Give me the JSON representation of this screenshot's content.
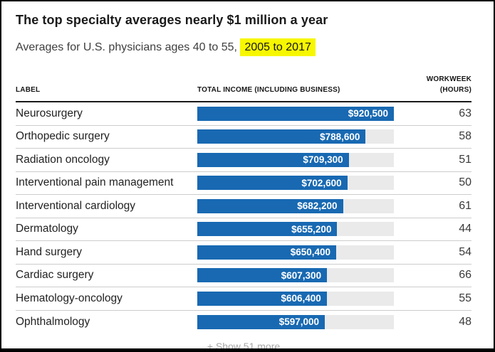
{
  "header": {
    "title": "The top specialty averages nearly $1 million a year",
    "subtitle_prefix": "Averages for U.S. physicians ages 40 to 55, ",
    "subtitle_highlight": "2005 to 2017"
  },
  "table": {
    "columns": {
      "label": "LABEL",
      "income": "TOTAL INCOME (INCLUDING BUSINESS)",
      "workweek_line1": "WORKWEEK",
      "workweek_line2": "(HOURS)"
    },
    "scale_max": 920500,
    "rows": [
      {
        "label": "Neurosurgery",
        "income_value": 920500,
        "income_label": "$920,500",
        "hours": "63"
      },
      {
        "label": "Orthopedic surgery",
        "income_value": 788600,
        "income_label": "$788,600",
        "hours": "58"
      },
      {
        "label": "Radiation oncology",
        "income_value": 709300,
        "income_label": "$709,300",
        "hours": "51"
      },
      {
        "label": "Interventional pain management",
        "income_value": 702600,
        "income_label": "$702,600",
        "hours": "50"
      },
      {
        "label": "Interventional cardiology",
        "income_value": 682200,
        "income_label": "$682,200",
        "hours": "61"
      },
      {
        "label": "Dermatology",
        "income_value": 655200,
        "income_label": "$655,200",
        "hours": "44"
      },
      {
        "label": "Hand surgery",
        "income_value": 650400,
        "income_label": "$650,400",
        "hours": "54"
      },
      {
        "label": "Cardiac surgery",
        "income_value": 607300,
        "income_label": "$607,300",
        "hours": "66"
      },
      {
        "label": "Hematology-oncology",
        "income_value": 606400,
        "income_label": "$606,400",
        "hours": "55"
      },
      {
        "label": "Ophthalmology",
        "income_value": 597000,
        "income_label": "$597,000",
        "hours": "48"
      }
    ]
  },
  "footer": {
    "show_more_label": "+ Show 51 more"
  },
  "colors": {
    "bar_fill": "#1869b2",
    "bar_track": "#eaeaea",
    "highlight": "#f7f700",
    "row_divider": "#cccccc",
    "header_rule": "#1a1a1a"
  },
  "chart_data": {
    "type": "bar",
    "orientation": "horizontal",
    "title": "The top specialty averages nearly $1 million a year",
    "subtitle": "Averages for U.S. physicians ages 40 to 55, 2005 to 2017",
    "categories": [
      "Neurosurgery",
      "Orthopedic surgery",
      "Radiation oncology",
      "Interventional pain management",
      "Interventional cardiology",
      "Dermatology",
      "Hand surgery",
      "Cardiac surgery",
      "Hematology-oncology",
      "Ophthalmology"
    ],
    "series": [
      {
        "name": "Total income (including business)",
        "unit": "USD",
        "values": [
          920500,
          788600,
          709300,
          702600,
          682200,
          655200,
          650400,
          607300,
          606400,
          597000
        ]
      },
      {
        "name": "Workweek (hours)",
        "values": [
          63,
          58,
          51,
          50,
          61,
          44,
          54,
          66,
          55,
          48
        ]
      }
    ],
    "xlim": [
      0,
      920500
    ],
    "grid": false,
    "legend": false,
    "data_labels": [
      "$920,500",
      "$788,600",
      "$709,300",
      "$702,600",
      "$682,200",
      "$655,200",
      "$650,400",
      "$607,300",
      "$606,400",
      "$597,000"
    ],
    "note": "+ Show 51 more"
  }
}
